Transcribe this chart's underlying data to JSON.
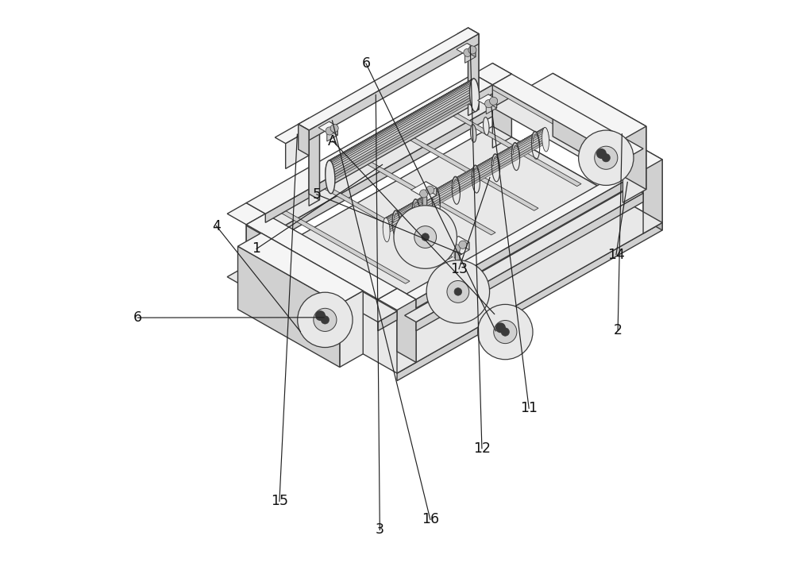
{
  "bg_color": "#ffffff",
  "ec": "#3a3a3a",
  "fc_light": "#e8e8e8",
  "fc_mid": "#d0d0d0",
  "fc_dark": "#b8b8b8",
  "fc_white": "#f5f5f5",
  "lw": 1.0,
  "figsize": [
    10.0,
    7.28
  ],
  "dpi": 100,
  "ox": 0.5,
  "oy": 0.34,
  "sx": 0.185,
  "sy": 0.105,
  "sz": 0.22
}
